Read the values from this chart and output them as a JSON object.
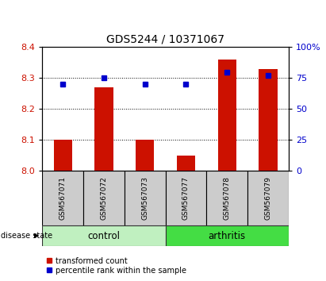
{
  "title": "GDS5244 / 10371067",
  "samples": [
    "GSM567071",
    "GSM567072",
    "GSM567073",
    "GSM567077",
    "GSM567078",
    "GSM567079"
  ],
  "transformed_count": [
    8.1,
    8.27,
    8.1,
    8.05,
    8.36,
    8.33
  ],
  "percentile_rank": [
    70,
    75,
    70,
    70,
    80,
    77
  ],
  "ylim_left": [
    8.0,
    8.4
  ],
  "ylim_right": [
    0,
    100
  ],
  "yticks_left": [
    8.0,
    8.1,
    8.2,
    8.3,
    8.4
  ],
  "yticks_right": [
    0,
    25,
    50,
    75,
    100
  ],
  "ytick_labels_right": [
    "0",
    "25",
    "50",
    "75",
    "100%"
  ],
  "group_control_indices": [
    0,
    1,
    2
  ],
  "group_arthritis_indices": [
    3,
    4,
    5
  ],
  "group_control_label": "control",
  "group_arthritis_label": "arthritis",
  "group_control_color": "#c0f0c0",
  "group_arthritis_color": "#44dd44",
  "sample_box_color": "#cccccc",
  "bar_color": "#cc1100",
  "marker_color": "#0000cc",
  "title_fontsize": 10,
  "left_tick_color": "#cc1100",
  "right_tick_color": "#0000cc",
  "legend_red_label": "transformed count",
  "legend_blue_label": "percentile rank within the sample",
  "disease_state_label": "disease state"
}
